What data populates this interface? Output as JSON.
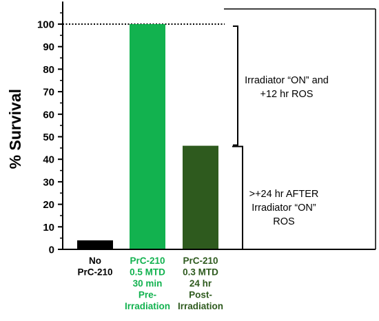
{
  "chart_data": {
    "type": "bar",
    "title": "",
    "ylabel": "% Survival",
    "xlabel": "",
    "ylim": [
      0,
      110
    ],
    "yticks": [
      0,
      10,
      20,
      30,
      40,
      50,
      60,
      70,
      80,
      90,
      100
    ],
    "reference_line": {
      "y": 100,
      "style": "dotted"
    },
    "categories": [
      [
        "No",
        "PrC-210"
      ],
      [
        "PrC-210",
        "0.5 MTD",
        "30 min",
        "Pre-",
        "Irradiation"
      ],
      [
        "PrC-210",
        "0.3 MTD",
        "24 hr",
        "Post-",
        "Irradiation"
      ]
    ],
    "values": [
      4,
      100,
      46
    ],
    "colors": [
      "#000000",
      "#12b24f",
      "#2e5a1e"
    ],
    "label_colors": [
      "#000000",
      "#12b24f",
      "#2e5a1e"
    ],
    "annotations": [
      {
        "lines": [
          "Irradiator “ON” and",
          "+12 hr ROS"
        ],
        "range": [
          46,
          100
        ]
      },
      {
        "lines": [
          ">+24 hr AFTER",
          "Irradiator “ON”",
          "ROS"
        ],
        "range": [
          0,
          46
        ]
      }
    ]
  }
}
